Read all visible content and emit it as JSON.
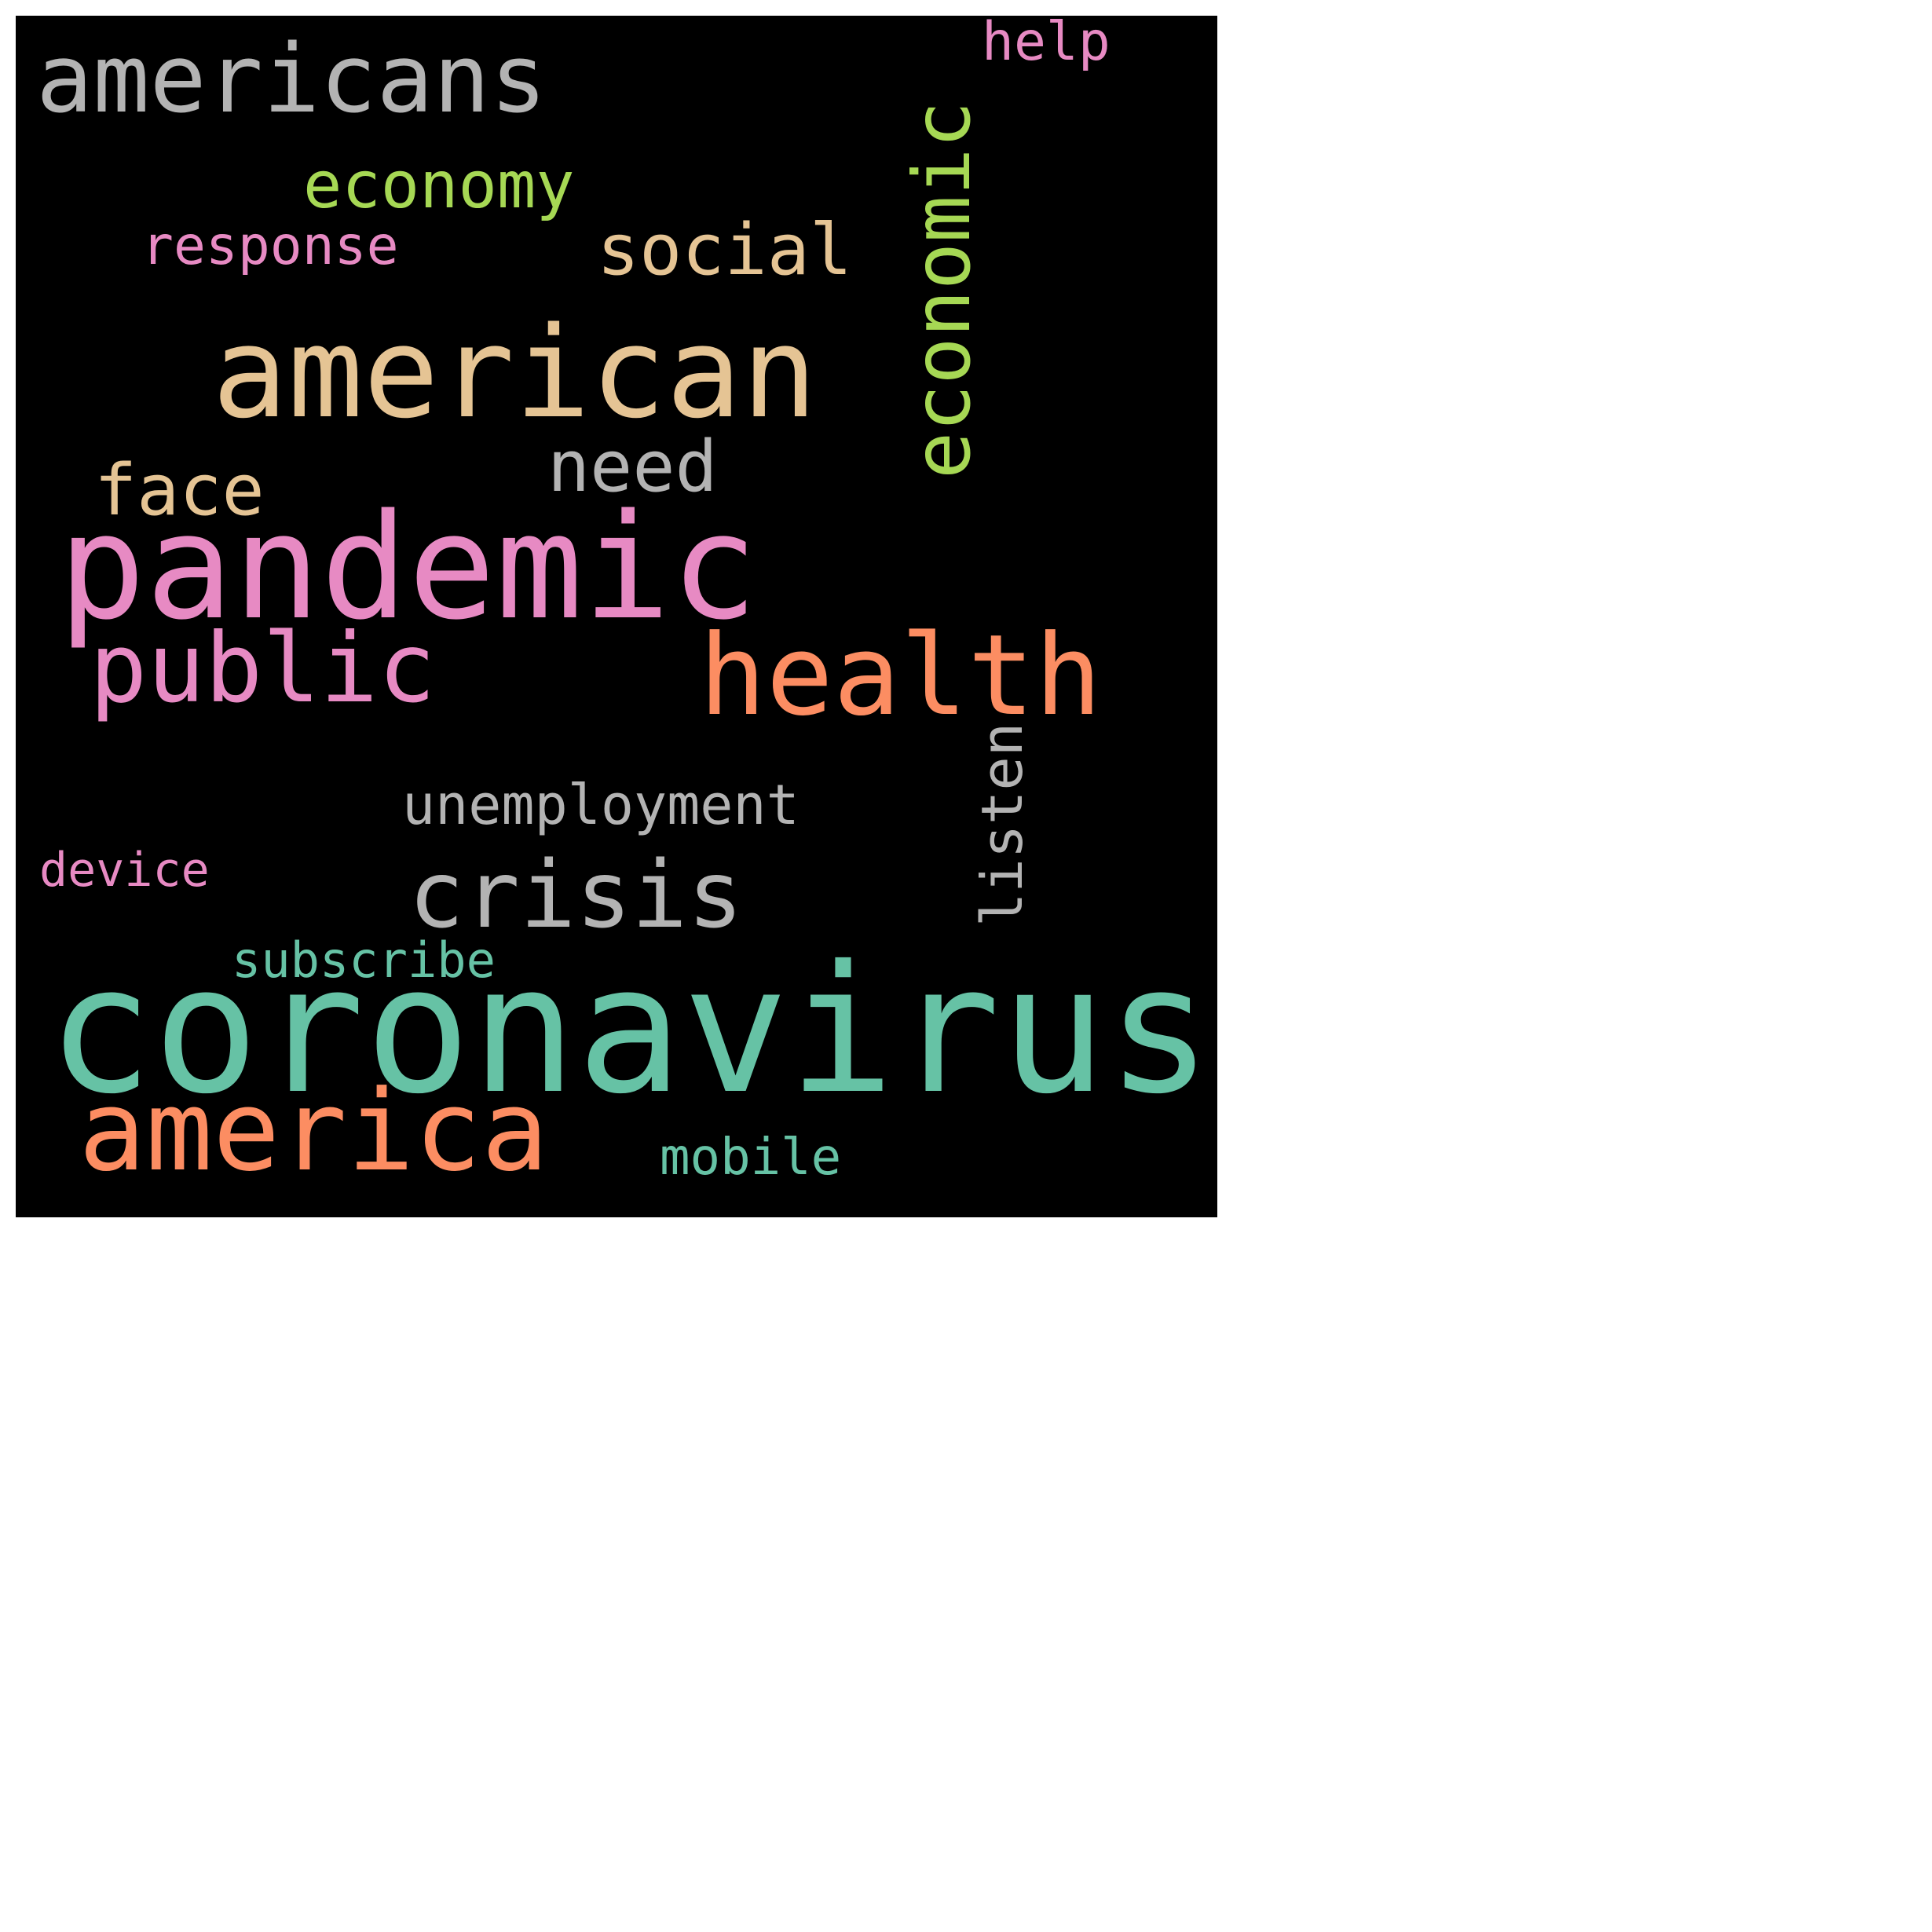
{
  "words": {
    "coronavirus": {
      "text": "coronavirus",
      "color": "#66c2a5"
    },
    "pandemic": {
      "text": "pandemic",
      "color": "#e78ac3"
    },
    "american": {
      "text": "american",
      "color": "#e5c494"
    },
    "americans": {
      "text": "americans",
      "color": "#b3b3b3"
    },
    "health": {
      "text": "health",
      "color": "#fc8d62"
    },
    "america": {
      "text": "america",
      "color": "#fc8d62"
    },
    "public": {
      "text": "public",
      "color": "#e78ac3"
    },
    "economic": {
      "text": "economic",
      "color": "#a6d854"
    },
    "crisis": {
      "text": "crisis",
      "color": "#b3b3b3"
    },
    "economy": {
      "text": "economy",
      "color": "#a6d854"
    },
    "social": {
      "text": "social",
      "color": "#e5c494"
    },
    "need": {
      "text": "need",
      "color": "#b3b3b3"
    },
    "face": {
      "text": "face",
      "color": "#e5c494"
    },
    "response": {
      "text": "response",
      "color": "#e78ac3"
    },
    "unemployment": {
      "text": "unemployment",
      "color": "#b3b3b3"
    },
    "listen": {
      "text": "listen",
      "color": "#b3b3b3"
    },
    "help": {
      "text": "help",
      "color": "#e78ac3"
    },
    "subscribe": {
      "text": "subscribe",
      "color": "#66c2a5"
    },
    "mobile": {
      "text": "mobile",
      "color": "#66c2a5"
    },
    "device": {
      "text": "device",
      "color": "#e78ac3"
    }
  }
}
